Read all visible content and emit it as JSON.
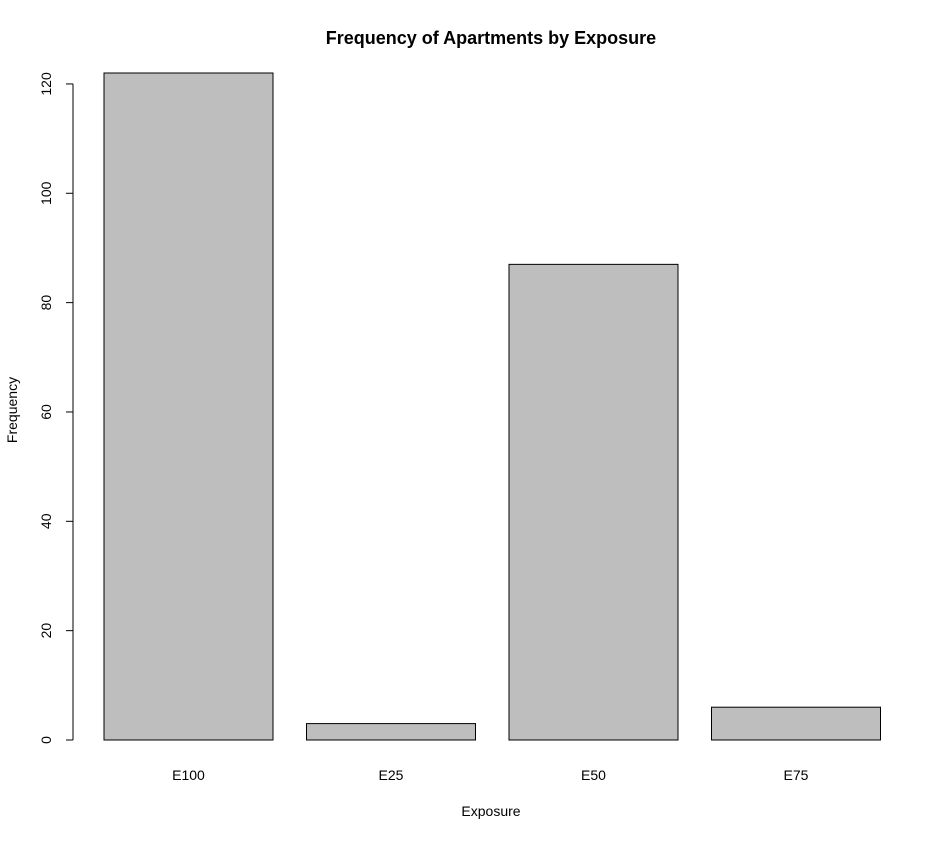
{
  "chart_data": {
    "type": "bar",
    "title": "Frequency of Apartments by Exposure",
    "xlabel": "Exposure",
    "ylabel": "Frequency",
    "categories": [
      "E100",
      "E25",
      "E50",
      "E75"
    ],
    "values": [
      122,
      3,
      87,
      6
    ],
    "ylim": [
      0,
      122
    ],
    "yticks": [
      "0",
      "20",
      "40",
      "60",
      "80",
      "100",
      "120"
    ],
    "grid": false,
    "legend": "none",
    "colors": {
      "bar_fill": "#bebebe",
      "bar_stroke": "#000000",
      "axis": "#000000",
      "background": "#ffffff"
    }
  }
}
